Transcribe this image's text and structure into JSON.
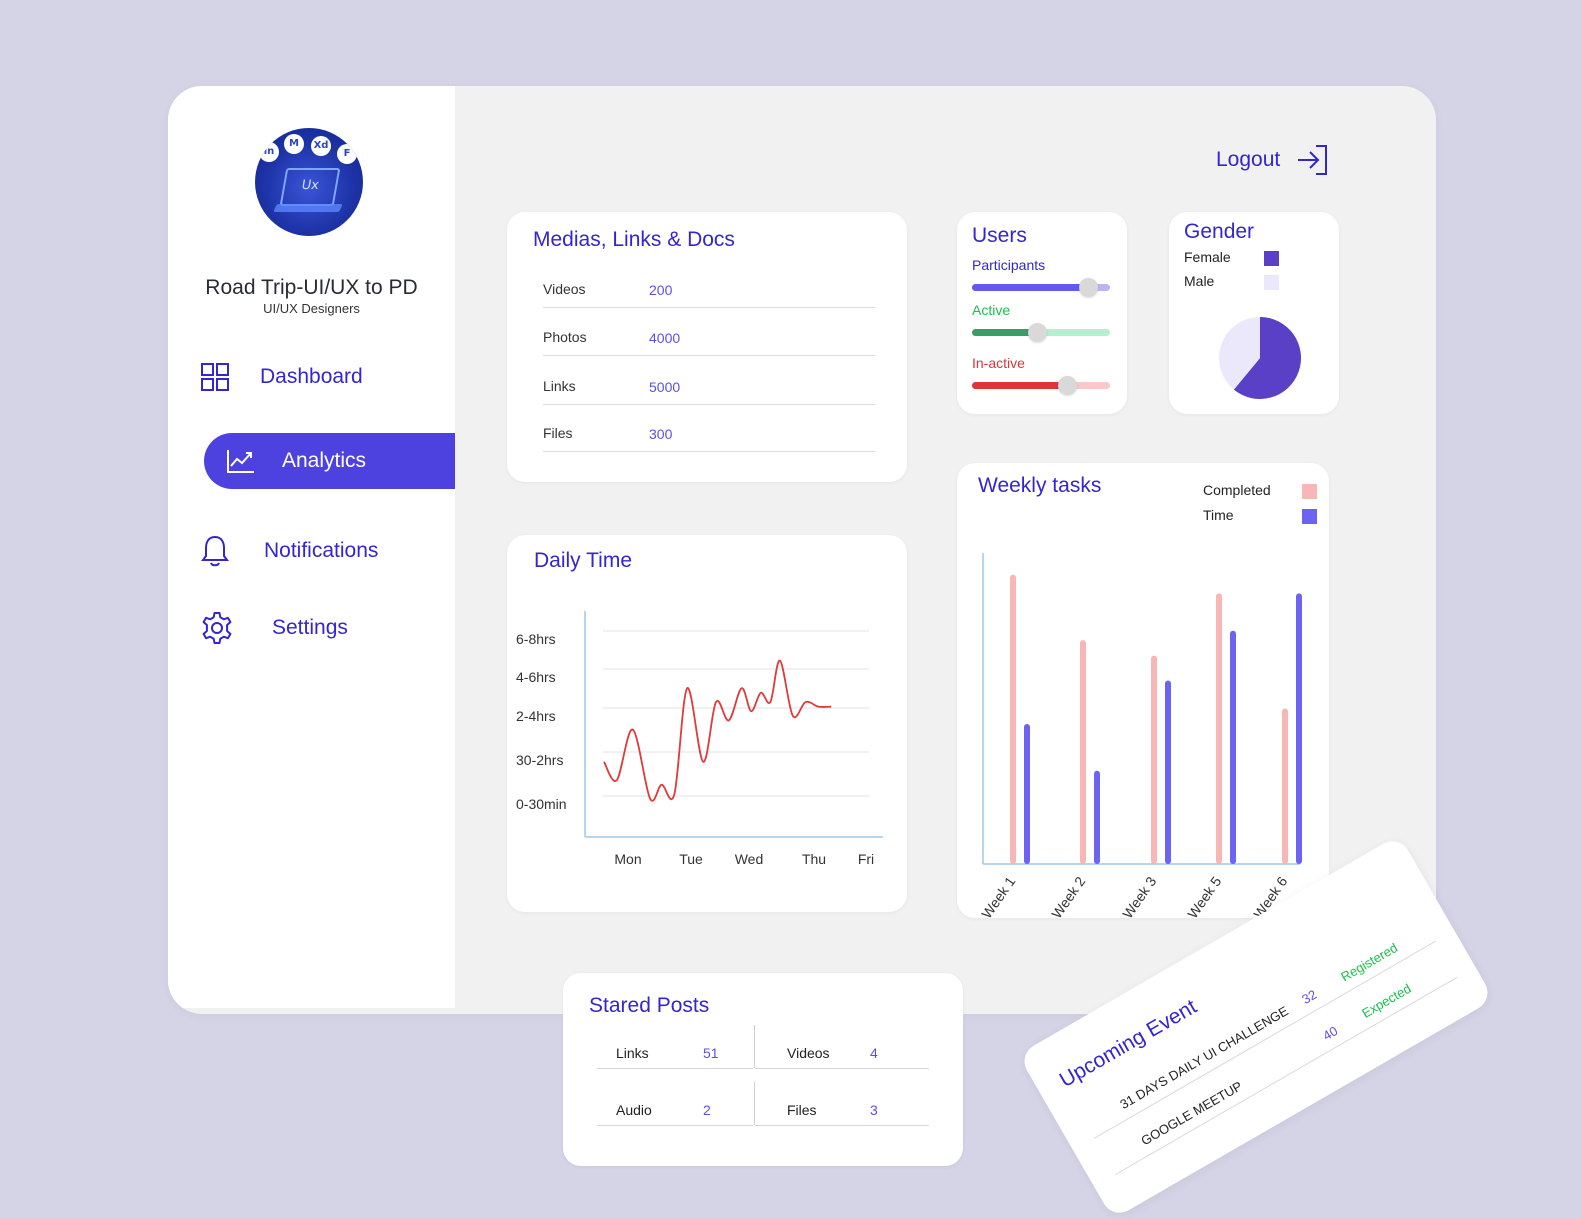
{
  "sidebar": {
    "org_name": "Road Trip-UI/UX to PD",
    "org_subtitle": "UI/UX Designers",
    "avatar_label": "Ux",
    "items": [
      {
        "label": "Dashboard",
        "icon": "grid-icon",
        "active": false
      },
      {
        "label": "Analytics",
        "icon": "chart-line-icon",
        "active": true
      },
      {
        "label": "Notifications",
        "icon": "bell-icon",
        "active": false
      },
      {
        "label": "Settings",
        "icon": "gear-icon",
        "active": false
      }
    ]
  },
  "header": {
    "logout_label": "Logout",
    "logout_icon": "logout-icon"
  },
  "medias": {
    "title": "Medias, Links & Docs",
    "rows": [
      {
        "label": "Videos",
        "value": "200"
      },
      {
        "label": "Photos",
        "value": "4000"
      },
      {
        "label": "Links",
        "value": "5000"
      },
      {
        "label": "Files",
        "value": "300"
      }
    ]
  },
  "users": {
    "title": "Users",
    "sliders": [
      {
        "label": "Participants",
        "level": 0.84,
        "color": "#6259f0",
        "track": "#b8b4f7",
        "label_color": "#3326d1"
      },
      {
        "label": "Active",
        "level": 0.47,
        "color": "#3f9a6a",
        "track": "#b6efd0",
        "label_color": "#19c24b"
      },
      {
        "label": "In-active",
        "level": 0.69,
        "color": "#e0343b",
        "track": "#f8c8cb",
        "label_color": "#e0343b"
      }
    ]
  },
  "gender": {
    "title": "Gender",
    "legend": [
      {
        "label": "Female",
        "color": "#5a3fc7"
      },
      {
        "label": "Male",
        "color": "#ece8fb"
      }
    ]
  },
  "daily_time": {
    "title": "Daily Time"
  },
  "weekly_tasks": {
    "title": "Weekly tasks",
    "legend": [
      {
        "label": "Completed",
        "color": "#f9b6b6"
      },
      {
        "label": "Time",
        "color": "#6c63f2"
      }
    ]
  },
  "stared_posts": {
    "title": "Stared Posts",
    "cells": [
      {
        "label": "Links",
        "value": "51"
      },
      {
        "label": "Videos",
        "value": "4"
      },
      {
        "label": "Audio",
        "value": "2"
      },
      {
        "label": "Files",
        "value": "3"
      }
    ]
  },
  "upcoming_event": {
    "title": "Upcoming Event",
    "events": [
      {
        "name": "31 DAYS DAILY UI CHALLENGE",
        "count": "32",
        "status": "Registered"
      },
      {
        "name": "GOOGLE MEETUP",
        "count": "40",
        "status": "Expected"
      }
    ]
  },
  "chart_data": [
    {
      "type": "line",
      "title": "Daily Time",
      "categories": [
        "Mon",
        "Tue",
        "Wed",
        "Thu",
        "Fri"
      ],
      "y_tick_labels": [
        "6-8hrs",
        "4-6hrs",
        "2-4hrs",
        "30-2hrs",
        "0-30min"
      ],
      "series": [
        {
          "color": "#e03a3a",
          "x": [
            0.0,
            0.2,
            0.45,
            0.72,
            0.9,
            1.1,
            1.3,
            1.55,
            1.75,
            1.95,
            2.15,
            2.3,
            2.45,
            2.6,
            2.75,
            2.95,
            3.15,
            3.35,
            3.55
          ],
          "y": [
            1.2,
            0.8,
            1.9,
            0.4,
            0.7,
            0.5,
            2.8,
            1.2,
            2.5,
            2.1,
            2.8,
            2.3,
            2.7,
            2.5,
            3.4,
            2.2,
            2.5,
            2.4,
            2.4
          ]
        }
      ],
      "grid": true
    },
    {
      "type": "bar",
      "title": "Weekly tasks",
      "categories": [
        "Week 1",
        "Week 2",
        "Week 3",
        "Week 5",
        "Week 6"
      ],
      "ylim": [
        0,
        100
      ],
      "series": [
        {
          "name": "Completed",
          "color": "#f9b6b6",
          "values": [
            93,
            72,
            67,
            87,
            50
          ]
        },
        {
          "name": "Time",
          "color": "#6c63f2",
          "values": [
            45,
            30,
            59,
            75,
            87
          ]
        }
      ]
    },
    {
      "type": "pie",
      "title": "Gender",
      "slices": [
        {
          "name": "Female",
          "value": 61,
          "color": "#5a3fc7"
        },
        {
          "name": "Male",
          "value": 39,
          "color": "#ece8fb"
        }
      ]
    }
  ]
}
